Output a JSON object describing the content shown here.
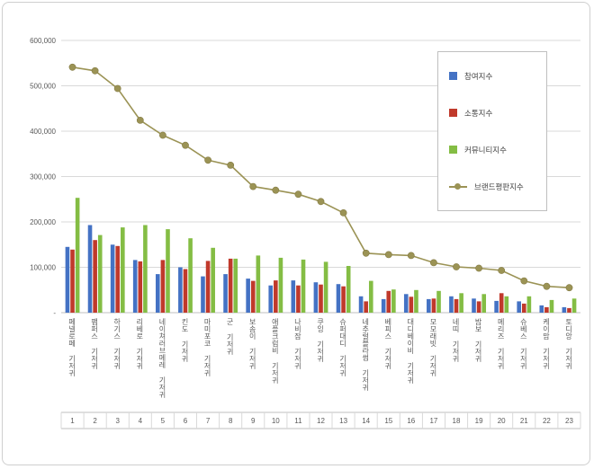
{
  "chart_data": {
    "type": "bar",
    "subtype": "grouped-bars-with-line-overlay",
    "title": "",
    "categories": [
      "페넬로페 기저귀",
      "팸퍼스 기저귀",
      "하기스 기저귀",
      "리베로 기저귀",
      "네이쳐러브메레 기저귀",
      "킨도 기저귀",
      "마미포코 기저귀",
      "군 기저귀",
      "보솜이 기저귀",
      "애플크럼비 기저귀",
      "나비잠 기저귀",
      "쿠잉 기저귀",
      "슈퍼대디 기저귀",
      "네추럴블라썸 기저귀",
      "베피스 기저귀",
      "대디베이비 기저귀",
      "모모래빗 기저귀",
      "네띠 기저귀",
      "밤보 기저귀",
      "메리즈 기저귀",
      "슈베스 기저귀",
      "케이맘 기저귀",
      "토디앙 기저귀"
    ],
    "ranks": [
      "1",
      "2",
      "3",
      "4",
      "5",
      "6",
      "7",
      "8",
      "9",
      "10",
      "11",
      "12",
      "13",
      "14",
      "15",
      "16",
      "17",
      "18",
      "19",
      "20",
      "21",
      "22",
      "23"
    ],
    "bar_series": [
      {
        "name": "참여지수",
        "color": "#4472c4",
        "values": [
          145000,
          193000,
          150000,
          116000,
          85000,
          100000,
          80000,
          85000,
          75000,
          60000,
          71000,
          67000,
          63000,
          36000,
          30000,
          41000,
          30000,
          36000,
          31000,
          26000,
          25000,
          16000,
          12000
        ]
      },
      {
        "name": "소통지수",
        "color": "#c0392b",
        "values": [
          139000,
          160000,
          147000,
          113000,
          116000,
          96000,
          114000,
          119000,
          70000,
          71000,
          60000,
          62000,
          58000,
          25000,
          48000,
          35000,
          31000,
          30000,
          25000,
          43000,
          20000,
          12000,
          10000
        ]
      },
      {
        "name": "커뮤니티지수",
        "color": "#84bd44",
        "values": [
          253000,
          171000,
          188000,
          193000,
          184000,
          164000,
          143000,
          119000,
          126000,
          121000,
          117000,
          112000,
          103000,
          70000,
          51000,
          50000,
          48000,
          43000,
          41000,
          36000,
          36000,
          28000,
          31000
        ]
      }
    ],
    "line_series": {
      "name": "브랜드평판지수",
      "color": "#9b9355",
      "values": [
        541000,
        533000,
        494000,
        424000,
        391000,
        369000,
        336000,
        325000,
        278000,
        270000,
        261000,
        245000,
        220000,
        131000,
        128000,
        126000,
        110000,
        101000,
        98000,
        93000,
        70000,
        58000,
        55000
      ]
    },
    "y_axis": {
      "min": 0,
      "max": 600000,
      "step": 100000,
      "tick_labels": [
        "600,000",
        "500,000",
        "400,000",
        "300,000",
        "200,000",
        "100,000",
        "-"
      ]
    },
    "grid": true,
    "legend_position": "right-top-inside"
  },
  "colors": {
    "gridline": "#d9d9d9",
    "axis": "#bfbfbf",
    "tick_text": "#595959",
    "frame_border": "#cfcfcf"
  }
}
